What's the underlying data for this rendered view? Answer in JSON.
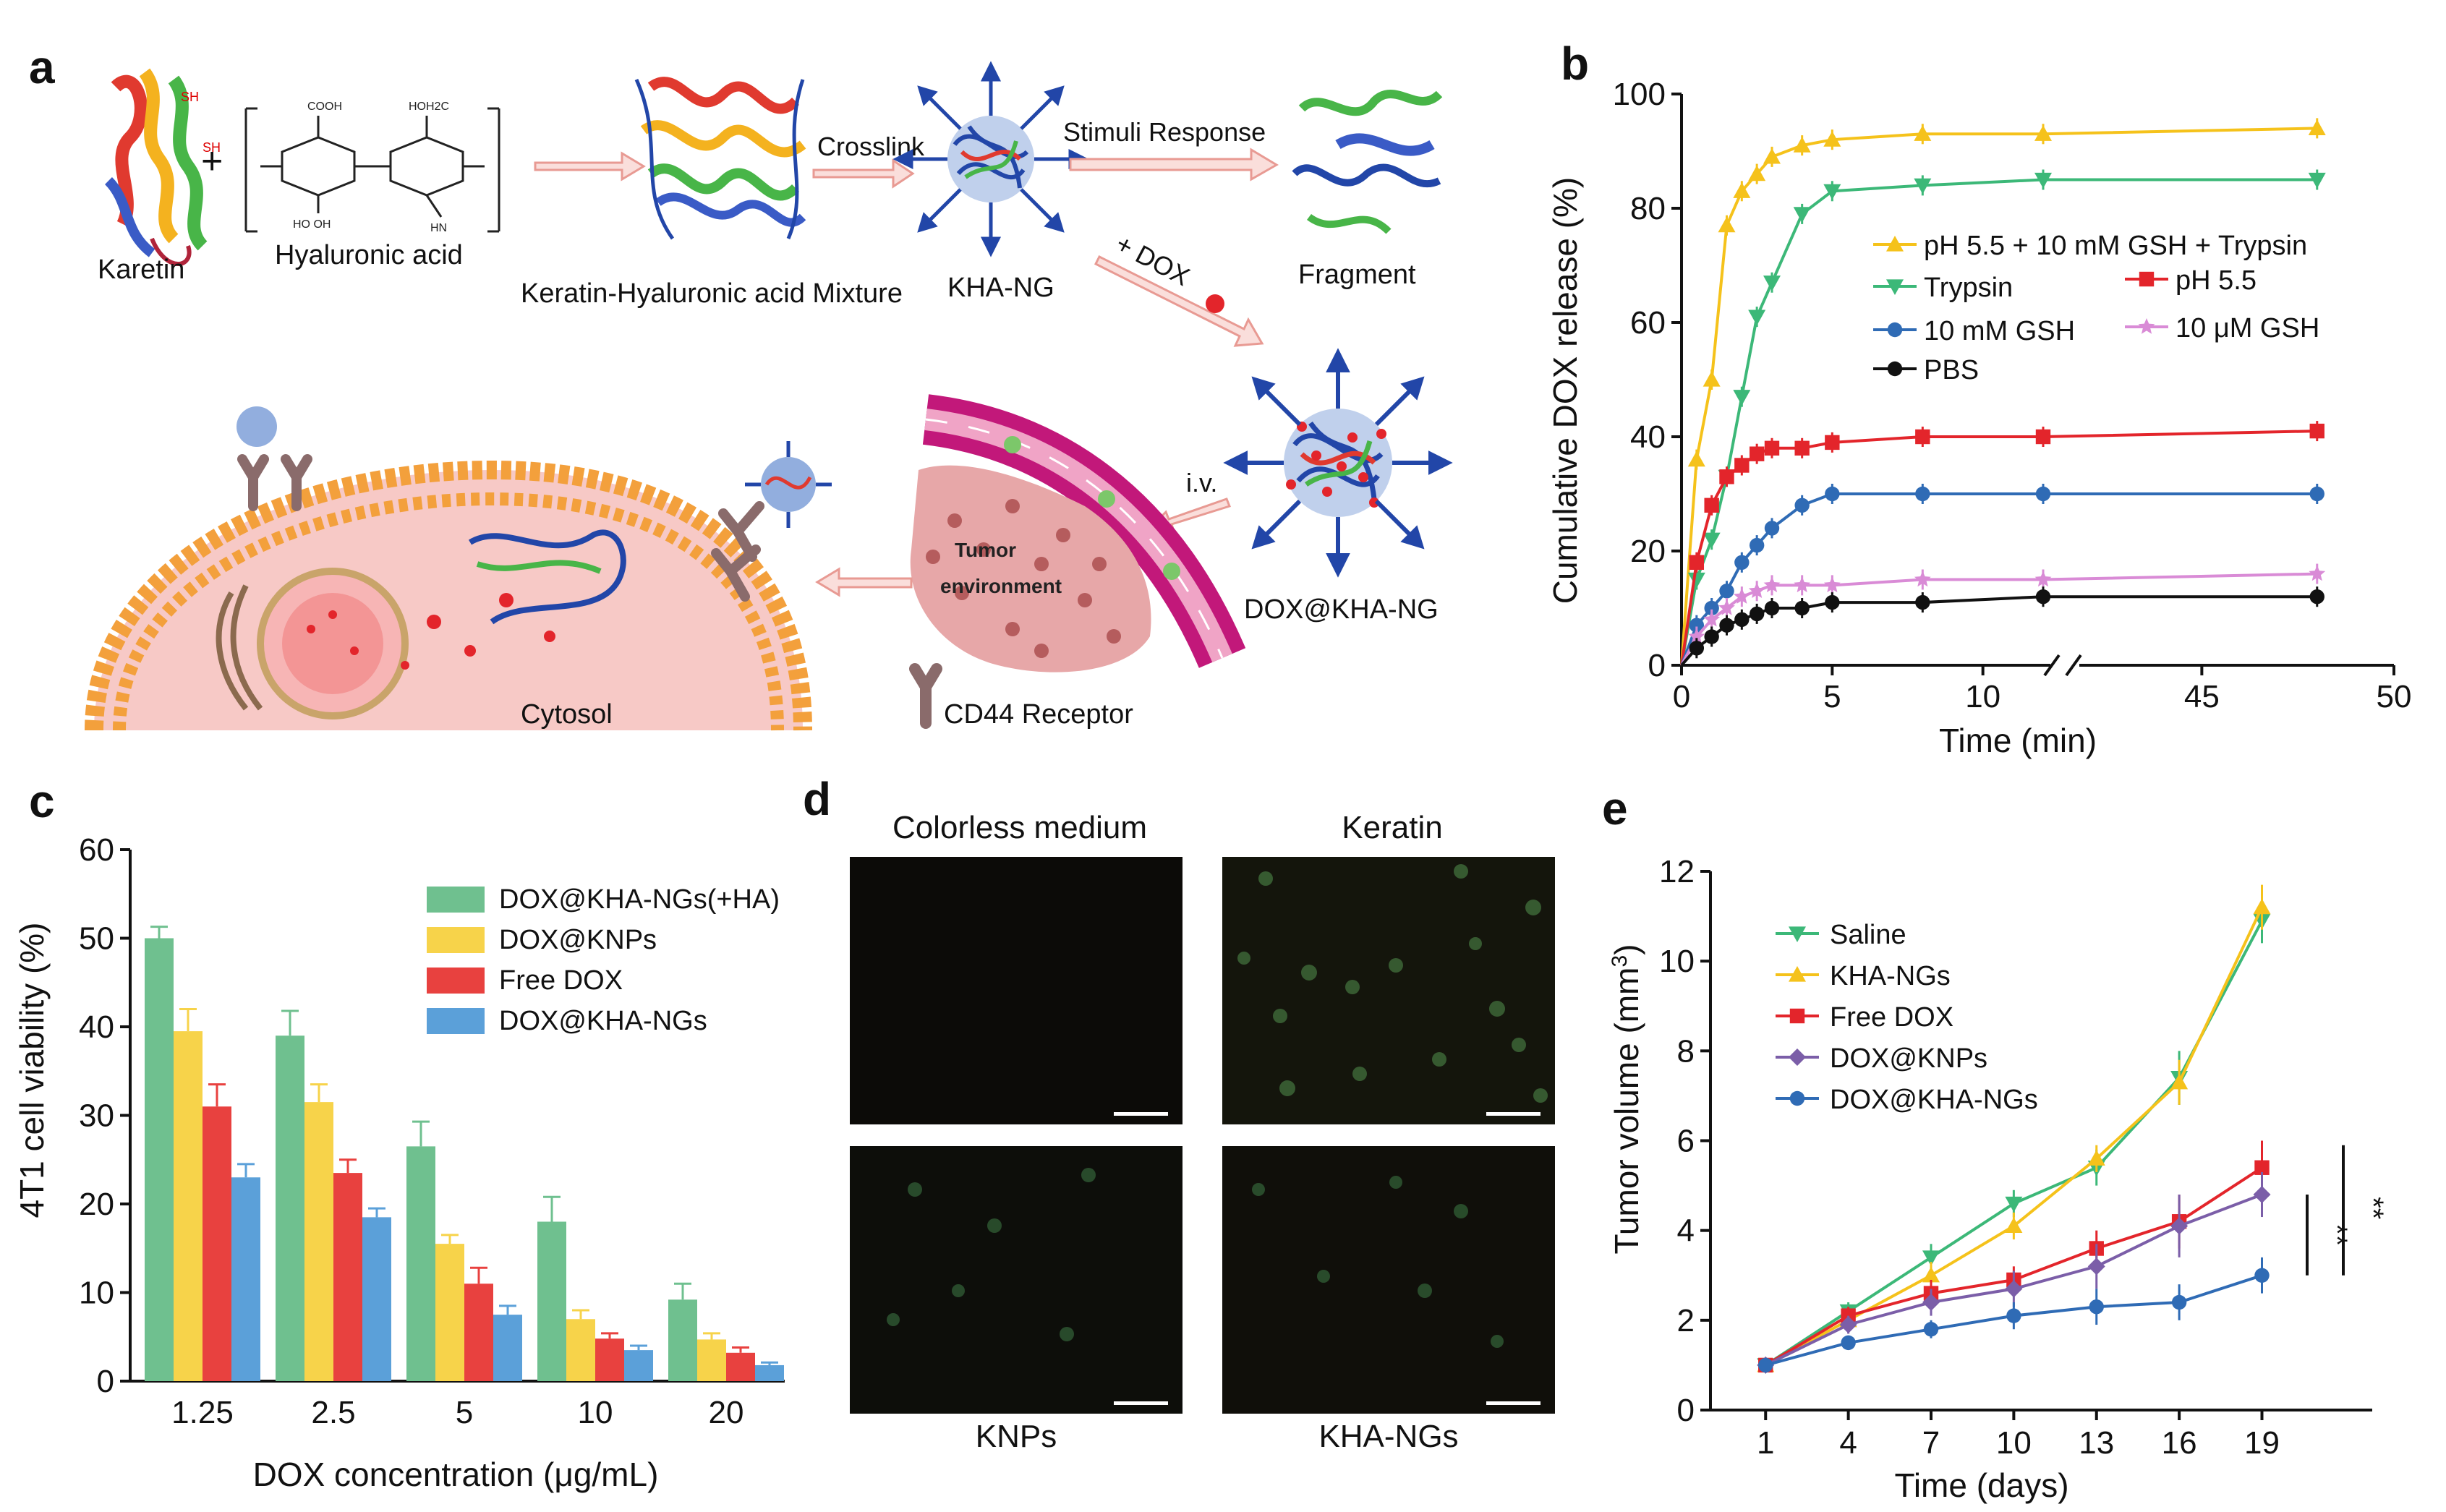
{
  "colors": {
    "yellow": "#f5c21b",
    "green": "#3cb878",
    "red": "#e3252b",
    "blue": "#2f6bb5",
    "pink": "#d98bd6",
    "black": "#111111",
    "purple": "#7b5ea8",
    "bar_green": "#6fc08f",
    "bar_yellow": "#f7d34a",
    "bar_red": "#e8413f",
    "bar_blue": "#5ba0d9",
    "membrane": "#f3a03c",
    "cytosol": "#f7c9c6",
    "vessel": "#c2187a",
    "receptor": "#8a6b6b"
  },
  "panel_a": {
    "letter": "a",
    "karetin": "Karetin",
    "plus": "+",
    "ha": "Hyaluronic acid",
    "mixture": "Keratin-Hyaluronic acid Mixture",
    "crosslink": "Crosslink",
    "kha_ng": "KHA-NG",
    "stimuli": "Stimuli Response",
    "fragment": "Fragment",
    "plus_dox": "+ DOX",
    "iv": "i.v.",
    "dox_kha_ng": "DOX@KHA-NG",
    "tumor": "Tumor",
    "environment": "environment",
    "cd44": "CD44 Receptor",
    "cytosol": "Cytosol"
  },
  "panel_d": {
    "letter": "d",
    "t1": "Colorless medium",
    "t2": "Keratin",
    "b1": "KNPs",
    "b2": "KHA-NGs"
  },
  "chart_data": [
    {
      "panel": "b",
      "type": "line",
      "title": "",
      "xlabel": "Time (min)",
      "ylabel": "Cumulative DOX release (%)",
      "xlim": [
        0,
        50
      ],
      "ylim": [
        0,
        100
      ],
      "axis_break_after": 12,
      "xticks": [
        "0",
        "5",
        "10",
        "45",
        "50"
      ],
      "yticks": [
        "0",
        "20",
        "40",
        "60",
        "80",
        "100"
      ],
      "legend": [
        "pH 5.5 + 10 mM GSH + Trypsin",
        "Trypsin",
        "pH 5.5",
        "10 mM GSH",
        "10 μM GSH",
        "PBS"
      ],
      "x": [
        0,
        0.5,
        1,
        1.5,
        2,
        2.5,
        3,
        4,
        5,
        8,
        12,
        48
      ],
      "series": [
        {
          "name": "pH 5.5 + 10 mM GSH + Trypsin",
          "color": "#f5c21b",
          "marker": "tri-up",
          "values": [
            0,
            36,
            50,
            77,
            83,
            86,
            89,
            91,
            92,
            93,
            93,
            94
          ]
        },
        {
          "name": "Trypsin",
          "color": "#3cb878",
          "marker": "tri-down",
          "values": [
            0,
            15,
            22,
            33,
            47,
            61,
            67,
            79,
            83,
            84,
            85,
            85
          ]
        },
        {
          "name": "pH 5.5",
          "color": "#e3252b",
          "marker": "square",
          "values": [
            0,
            18,
            28,
            33,
            35,
            37,
            38,
            38,
            39,
            40,
            40,
            41
          ]
        },
        {
          "name": "10 mM GSH",
          "color": "#2f6bb5",
          "marker": "circle",
          "values": [
            0,
            7,
            10,
            13,
            18,
            21,
            24,
            28,
            30,
            30,
            30,
            30
          ]
        },
        {
          "name": "10 μM GSH",
          "color": "#d98bd6",
          "marker": "star",
          "values": [
            0,
            5,
            8,
            10,
            12,
            13,
            14,
            14,
            14,
            15,
            15,
            16
          ]
        },
        {
          "name": "PBS",
          "color": "#111111",
          "marker": "circle",
          "values": [
            0,
            3,
            5,
            7,
            8,
            9,
            10,
            10,
            11,
            11,
            12,
            12
          ]
        }
      ]
    },
    {
      "panel": "c",
      "type": "bar",
      "xlabel": "DOX concentration (μg/mL)",
      "ylabel": "4T1 cell viability (%)",
      "ylim": [
        0,
        60
      ],
      "yticks": [
        "0",
        "10",
        "20",
        "30",
        "40",
        "50",
        "60"
      ],
      "categories": [
        "1.25",
        "2.5",
        "5",
        "10",
        "20"
      ],
      "series": [
        {
          "name": "DOX@KHA-NGs(+HA)",
          "color": "#6fc08f",
          "values": [
            50,
            39,
            26.5,
            18,
            9.2
          ],
          "errors": [
            1.3,
            2.8,
            2.8,
            2.8,
            1.8
          ]
        },
        {
          "name": "DOX@KNPs",
          "color": "#f7d34a",
          "values": [
            39.5,
            31.5,
            15.5,
            7,
            4.7
          ],
          "errors": [
            2.5,
            2,
            1,
            1,
            0.7
          ]
        },
        {
          "name": "Free DOX",
          "color": "#e8413f",
          "values": [
            31,
            23.5,
            11,
            4.8,
            3.2
          ],
          "errors": [
            2.5,
            1.5,
            1.8,
            0.6,
            0.6
          ]
        },
        {
          "name": "DOX@KHA-NGs",
          "color": "#5ba0d9",
          "values": [
            23,
            18.5,
            7.5,
            3.5,
            1.8
          ],
          "errors": [
            1.5,
            1,
            1,
            0.5,
            0.3
          ]
        }
      ]
    },
    {
      "panel": "e",
      "type": "line",
      "xlabel": "Time (days)",
      "ylabel": "Tumor volume (mm3)",
      "ylabel_main": "Tumor volume (mm",
      "ylabel_sup": "3",
      "ylabel_end": ")",
      "xlim": [
        -1,
        23
      ],
      "ylim": [
        0,
        12
      ],
      "x": [
        1,
        4,
        7,
        10,
        13,
        16,
        19
      ],
      "xticks": [
        "1",
        "4",
        "7",
        "10",
        "13",
        "16",
        "19"
      ],
      "yticks": [
        "0",
        "2",
        "4",
        "6",
        "8",
        "10",
        "12"
      ],
      "significance": [
        "**",
        "**"
      ],
      "series": [
        {
          "name": "Saline",
          "color": "#3cb878",
          "marker": "tri-down",
          "values": [
            1,
            2.2,
            3.4,
            4.6,
            5.4,
            7.4,
            10.9
          ],
          "errors": [
            0.1,
            0.2,
            0.3,
            0.3,
            0.4,
            0.6,
            0.5
          ]
        },
        {
          "name": "KHA-NGs",
          "color": "#f5c21b",
          "marker": "tri-up",
          "values": [
            1,
            2.0,
            3.0,
            4.1,
            5.6,
            7.3,
            11.2
          ],
          "errors": [
            0.1,
            0.2,
            0.3,
            0.3,
            0.3,
            0.5,
            0.5
          ]
        },
        {
          "name": "Free DOX",
          "color": "#e3252b",
          "marker": "square",
          "values": [
            1,
            2.1,
            2.6,
            2.9,
            3.6,
            4.2,
            5.4
          ],
          "errors": [
            0.1,
            0.2,
            0.3,
            0.3,
            0.4,
            0.6,
            0.6
          ]
        },
        {
          "name": "DOX@KNPs",
          "color": "#7b5ea8",
          "marker": "diamond",
          "values": [
            1,
            1.9,
            2.4,
            2.7,
            3.2,
            4.1,
            4.8
          ],
          "errors": [
            0.1,
            0.2,
            0.3,
            0.4,
            0.5,
            0.7,
            0.5
          ]
        },
        {
          "name": "DOX@KHA-NGs",
          "color": "#2f6bb5",
          "marker": "circle",
          "values": [
            1,
            1.5,
            1.8,
            2.1,
            2.3,
            2.4,
            3.0
          ],
          "errors": [
            0.1,
            0.1,
            0.2,
            0.3,
            0.4,
            0.4,
            0.4
          ]
        }
      ]
    }
  ]
}
